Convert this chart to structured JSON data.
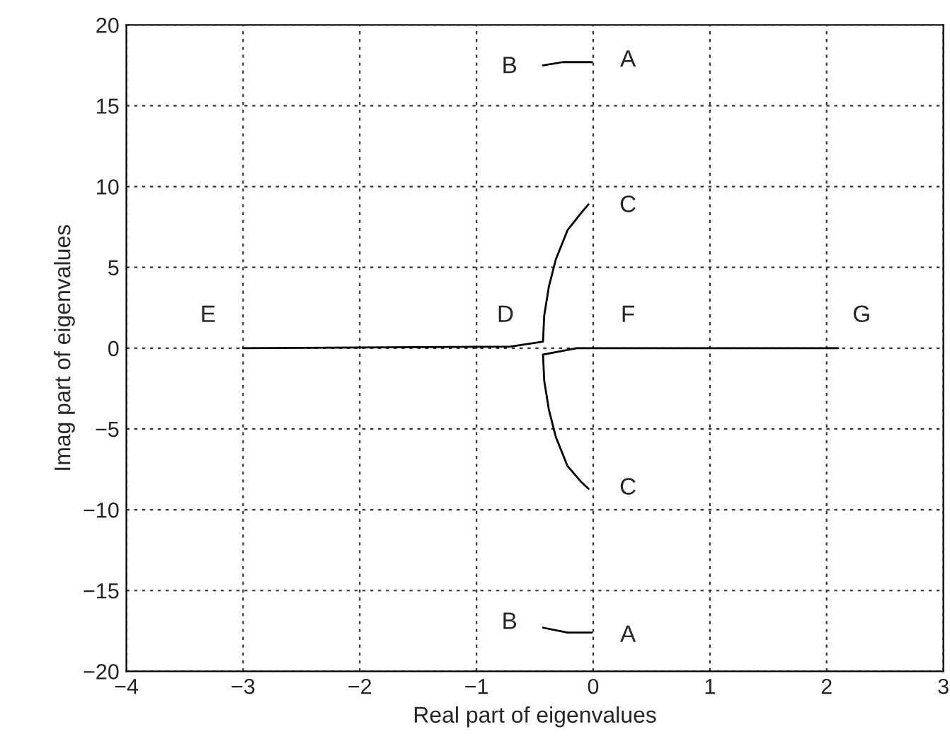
{
  "chart_data": {
    "type": "line",
    "xlabel": "Real part of eigenvalues",
    "ylabel": "Imag part of eigenvalues",
    "xlim": [
      -4,
      3
    ],
    "ylim": [
      -20,
      20
    ],
    "xticks": [
      -4,
      -3,
      -2,
      -1,
      0,
      1,
      2,
      3
    ],
    "yticks": [
      -20,
      -15,
      -10,
      -5,
      0,
      5,
      10,
      15,
      20
    ],
    "grid": true,
    "line_style": "solid",
    "marker": "none",
    "series": [
      {
        "color": "#000000",
        "x": [
          -3.0,
          -0.71,
          -0.43,
          -0.43,
          -0.42,
          -0.38,
          -0.32,
          -0.22,
          -0.1,
          -0.04
        ],
        "values": [
          0,
          0.1,
          0.4,
          0.4,
          2.0,
          3.8,
          5.5,
          7.3,
          8.4,
          8.9
        ]
      },
      {
        "color": "#000000",
        "x": [
          2.1,
          -0.14,
          -0.43,
          -0.43,
          -0.42,
          -0.38,
          -0.32,
          -0.22,
          -0.1,
          -0.04
        ],
        "values": [
          0,
          0,
          -0.4,
          -0.4,
          -2.0,
          -3.8,
          -5.5,
          -7.3,
          -8.3,
          -8.7
        ]
      },
      {
        "color": "#000000",
        "x": [
          -0.43,
          -0.26,
          -0.01
        ],
        "values": [
          17.5,
          17.7,
          17.7
        ]
      },
      {
        "color": "#000000",
        "x": [
          -0.43,
          -0.22,
          -0.01
        ],
        "values": [
          -17.3,
          -17.6,
          -17.6
        ]
      }
    ],
    "annotations": [
      "E",
      "D",
      "F",
      "G",
      "C",
      "C",
      "B",
      "A",
      "B",
      "A"
    ]
  }
}
